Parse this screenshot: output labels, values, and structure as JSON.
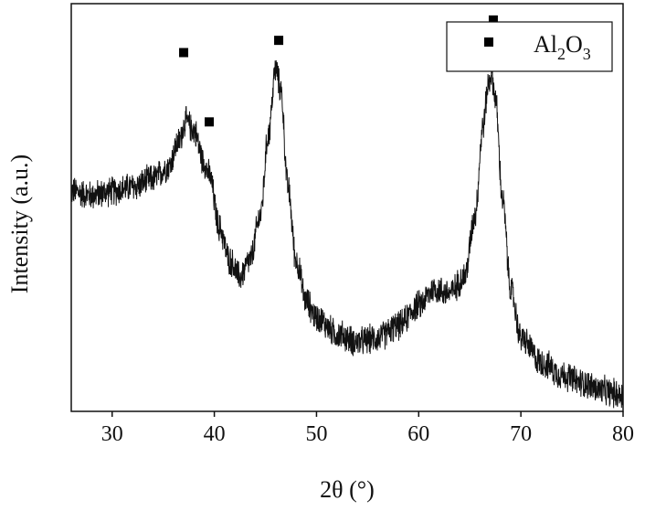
{
  "chart_data": {
    "type": "line",
    "title": "",
    "xlabel": "2θ (°)",
    "ylabel": "Intensity (a.u.)",
    "xlim": [
      26,
      80
    ],
    "ylim": [
      0,
      1
    ],
    "x_ticks": [
      30,
      40,
      50,
      60,
      70,
      80
    ],
    "y_tick_labels": false,
    "grid": false,
    "legend": {
      "placement": "top-right",
      "entries": [
        {
          "marker": "square",
          "base": "Al",
          "sub1": "2",
          "mid": "O",
          "sub2": "3"
        }
      ]
    },
    "series": [
      {
        "color": "#111111",
        "noise": 0.035,
        "points": [
          [
            26,
            0.54
          ],
          [
            28,
            0.53
          ],
          [
            30,
            0.54
          ],
          [
            32,
            0.55
          ],
          [
            34,
            0.57
          ],
          [
            35.5,
            0.6
          ],
          [
            36.5,
            0.66
          ],
          [
            37.2,
            0.71
          ],
          [
            38,
            0.69
          ],
          [
            39,
            0.61
          ],
          [
            39.5,
            0.58
          ],
          [
            40.5,
            0.45
          ],
          [
            41.5,
            0.37
          ],
          [
            42.5,
            0.33
          ],
          [
            43.5,
            0.37
          ],
          [
            44.5,
            0.48
          ],
          [
            45.3,
            0.68
          ],
          [
            46.0,
            0.84
          ],
          [
            46.5,
            0.79
          ],
          [
            47.2,
            0.55
          ],
          [
            48,
            0.37
          ],
          [
            49,
            0.27
          ],
          [
            50,
            0.23
          ],
          [
            52,
            0.19
          ],
          [
            54,
            0.17
          ],
          [
            56,
            0.18
          ],
          [
            58,
            0.21
          ],
          [
            60,
            0.26
          ],
          [
            61.5,
            0.3
          ],
          [
            63,
            0.29
          ],
          [
            64.5,
            0.33
          ],
          [
            65.5,
            0.48
          ],
          [
            66.3,
            0.7
          ],
          [
            66.8,
            0.8
          ],
          [
            67.1,
            0.83
          ],
          [
            67.5,
            0.77
          ],
          [
            68.2,
            0.52
          ],
          [
            69,
            0.3
          ],
          [
            70,
            0.18
          ],
          [
            72,
            0.12
          ],
          [
            74,
            0.09
          ],
          [
            76,
            0.07
          ],
          [
            78,
            0.05
          ],
          [
            80,
            0.04
          ]
        ]
      }
    ],
    "annotations": [
      {
        "marker": "square",
        "x": 37.0,
        "y": 0.88,
        "label": ""
      },
      {
        "marker": "square",
        "x": 39.5,
        "y": 0.71,
        "label": ""
      },
      {
        "marker": "square",
        "x": 46.3,
        "y": 0.91,
        "label": ""
      },
      {
        "marker": "square",
        "x": 67.3,
        "y": 0.96,
        "label": ""
      }
    ]
  }
}
